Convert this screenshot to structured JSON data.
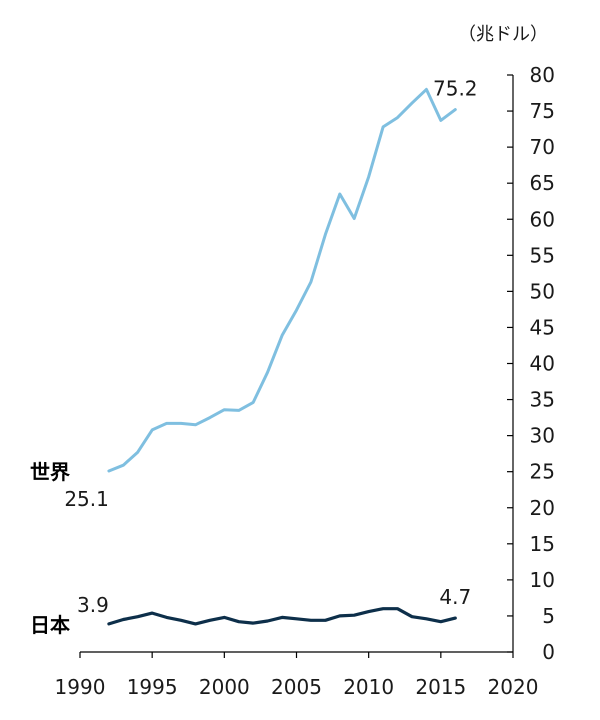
{
  "chart_data": {
    "type": "line",
    "unit_label": "（兆ドル）",
    "x": [
      1992,
      1993,
      1994,
      1995,
      1996,
      1997,
      1998,
      1999,
      2000,
      2001,
      2002,
      2003,
      2004,
      2005,
      2006,
      2007,
      2008,
      2009,
      2010,
      2011,
      2012,
      2013,
      2014,
      2015,
      2016
    ],
    "xlim": [
      1990,
      2020
    ],
    "ylim": [
      0,
      80
    ],
    "x_ticks": [
      "1990",
      "1995",
      "2000",
      "2005",
      "2010",
      "2015",
      "2020"
    ],
    "y_ticks": [
      "0",
      "5",
      "10",
      "15",
      "20",
      "25",
      "30",
      "35",
      "40",
      "45",
      "50",
      "55",
      "60",
      "65",
      "70",
      "75",
      "80"
    ],
    "y_axis_side": "right",
    "grid": false,
    "series": [
      {
        "name": "世界",
        "color": "#7fbfe0",
        "values": [
          25.1,
          25.9,
          27.7,
          30.8,
          31.7,
          31.7,
          31.5,
          32.5,
          33.6,
          33.5,
          34.6,
          38.8,
          43.9,
          47.4,
          51.3,
          57.9,
          63.5,
          60.1,
          65.9,
          72.8,
          74.1,
          76.1,
          78.0,
          73.7,
          75.2
        ],
        "start_label": "25.1",
        "end_label": "75.2"
      },
      {
        "name": "日本",
        "color": "#0d2f4a",
        "values": [
          3.9,
          4.5,
          4.9,
          5.4,
          4.8,
          4.4,
          3.9,
          4.4,
          4.8,
          4.2,
          4.0,
          4.3,
          4.8,
          4.6,
          4.4,
          4.4,
          5.0,
          5.1,
          5.6,
          6.0,
          6.0,
          4.9,
          4.6,
          4.2,
          4.7
        ],
        "start_label": "3.9",
        "end_label": "4.7"
      }
    ]
  }
}
